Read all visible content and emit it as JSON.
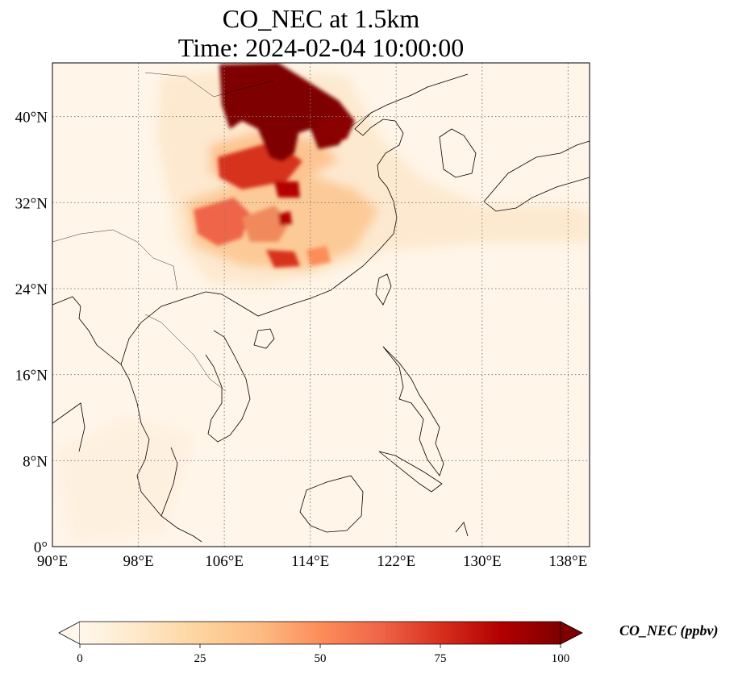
{
  "title": {
    "line1": "CO_NEC at 1.5km",
    "line2": "Time: 2024-02-04 10:00:00"
  },
  "map": {
    "lon_range": [
      90,
      140
    ],
    "lat_range": [
      0,
      45
    ],
    "x_ticks": [
      "90°E",
      "98°E",
      "106°E",
      "114°E",
      "122°E",
      "130°E",
      "138°E"
    ],
    "x_tick_values": [
      90,
      98,
      106,
      114,
      122,
      130,
      138
    ],
    "y_ticks": [
      "0°",
      "8°N",
      "16°N",
      "24°N",
      "32°N",
      "40°N"
    ],
    "y_tick_values": [
      0,
      8,
      16,
      24,
      32,
      40
    ],
    "gridlines": "dotted",
    "colormap": "OrRd",
    "colors": {
      "low": "#fff7ec",
      "mid": "#fdbb84",
      "high": "#7f0000",
      "coast": "#000000",
      "grid": "#808080"
    }
  },
  "colorbar": {
    "ticks": [
      "0",
      "25",
      "50",
      "75",
      "100"
    ],
    "tick_values": [
      0,
      25,
      50,
      75,
      100
    ],
    "range": [
      0,
      100
    ],
    "extend": "both",
    "label": "CO_NEC (ppbv)",
    "orientation": "horizontal"
  }
}
